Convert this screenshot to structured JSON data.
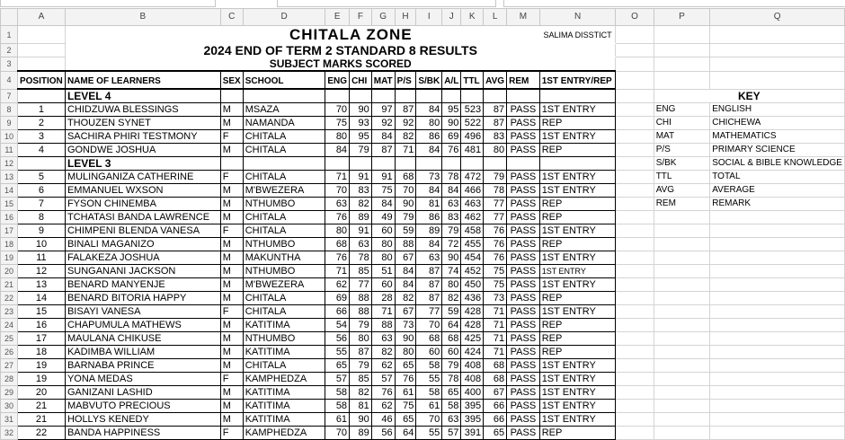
{
  "columns": [
    "A",
    "B",
    "C",
    "D",
    "E",
    "F",
    "G",
    "H",
    "I",
    "J",
    "K",
    "L",
    "M",
    "N",
    "O",
    "P",
    "Q"
  ],
  "title": "CHITALA  ZONE",
  "district": "SALIMA  DISSTICT",
  "subtitle": "2024 END OF TERM 2 STANDARD 8 RESULTS",
  "subtitle2": "SUBJECT  MARKS  SCORED",
  "headers": [
    "POSITION",
    "NAME OF LEARNERS",
    "SEX",
    "SCHOOL",
    "ENG",
    "CHI",
    "MAT",
    "P/S",
    "S/BK",
    "A/L",
    "TTL",
    "AVG",
    "REM",
    "1ST ENTRY/REP"
  ],
  "header_row_numbers": [
    "1",
    "2",
    "3",
    "4"
  ],
  "rows": [
    {
      "n": "7",
      "level": "LEVEL  4"
    },
    {
      "n": "8",
      "cells": [
        "1",
        "CHIDZUWA  BLESSINGS",
        "M",
        "MSAZA",
        "70",
        "90",
        "97",
        "87",
        "84",
        "95",
        "523",
        "87",
        "PASS",
        "1ST ENTRY"
      ]
    },
    {
      "n": "9",
      "cells": [
        "2",
        "THOUZEN  SYNET",
        "M",
        "NAMANDA",
        "75",
        "93",
        "92",
        "92",
        "80",
        "90",
        "522",
        "87",
        "PASS",
        "REP"
      ]
    },
    {
      "n": "10",
      "cells": [
        "3",
        "SACHIRA PHIRI TESTMONY",
        "F",
        "CHITALA",
        "80",
        "95",
        "84",
        "82",
        "86",
        "69",
        "496",
        "83",
        "PASS",
        "1ST ENTRY"
      ]
    },
    {
      "n": "11",
      "cells": [
        "4",
        "GONDWE  JOSHUA",
        "M",
        "CHITALA",
        "84",
        "79",
        "87",
        "71",
        "84",
        "76",
        "481",
        "80",
        "PASS",
        "REP"
      ]
    },
    {
      "n": "12",
      "level": "LEVEL  3"
    },
    {
      "n": "13",
      "cells": [
        "5",
        "MULINGANIZA  CATHERINE",
        "F",
        "CHITALA",
        "71",
        "91",
        "91",
        "68",
        "73",
        "78",
        "472",
        "79",
        "PASS",
        "1ST ENTRY"
      ]
    },
    {
      "n": "14",
      "cells": [
        "6",
        "EMMANUEL  WXSON",
        "M",
        "M'BWEZERA",
        "70",
        "83",
        "75",
        "70",
        "84",
        "84",
        "466",
        "78",
        "PASS",
        "1ST ENTRY"
      ]
    },
    {
      "n": "15",
      "cells": [
        "7",
        "FYSON  CHINEMBA",
        "M",
        "NTHUMBO",
        "63",
        "82",
        "84",
        "90",
        "81",
        "63",
        "463",
        "77",
        "PASS",
        "REP"
      ]
    },
    {
      "n": "16",
      "cells": [
        "8",
        "TCHATASI  BANDA LAWRENCE",
        "M",
        "CHITALA",
        "76",
        "89",
        "49",
        "79",
        "86",
        "83",
        "462",
        "77",
        "PASS",
        "REP"
      ]
    },
    {
      "n": "17",
      "cells": [
        "9",
        "CHIMPENI  BLENDA  VANESA",
        "F",
        "CHITALA",
        "80",
        "91",
        "60",
        "59",
        "89",
        "79",
        "458",
        "76",
        "PASS",
        "1ST ENTRY"
      ]
    },
    {
      "n": "18",
      "cells": [
        "10",
        "BINALI  MAGANIZO",
        "M",
        "NTHUMBO",
        "68",
        "63",
        "80",
        "88",
        "84",
        "72",
        "455",
        "76",
        "PASS",
        "REP"
      ]
    },
    {
      "n": "19",
      "cells": [
        "11",
        "FALAKEZA  JOSHUA",
        "M",
        "MAKUNTHA",
        "76",
        "78",
        "80",
        "67",
        "63",
        "90",
        "454",
        "76",
        "PASS",
        "1ST ENTRY"
      ]
    },
    {
      "n": "20",
      "cells": [
        "12",
        "SUNGANANI  JACKSON",
        "M",
        "NTHUMBO",
        "71",
        "85",
        "51",
        "84",
        "87",
        "74",
        "452",
        "75",
        "PASS",
        "1ST ENTRY"
      ]
    },
    {
      "n": "21",
      "cells": [
        "13",
        "BENARD  MANYENJE",
        "M",
        "M'BWEZERA",
        "62",
        "77",
        "60",
        "84",
        "87",
        "80",
        "450",
        "75",
        "PASS",
        "1ST ENTRY"
      ]
    },
    {
      "n": "22",
      "cells": [
        "14",
        "BENARD  BITORIA  HAPPY",
        "M",
        "CHITALA",
        "69",
        "88",
        "28",
        "82",
        "87",
        "82",
        "436",
        "73",
        "PASS",
        "REP"
      ]
    },
    {
      "n": "23",
      "cells": [
        "15",
        "BISAYI  VANESA",
        "F",
        "CHITALA",
        "66",
        "88",
        "71",
        "67",
        "77",
        "59",
        "428",
        "71",
        "PASS",
        "1ST ENTRY"
      ]
    },
    {
      "n": "24",
      "cells": [
        "16",
        "CHAPUMULA  MATHEWS",
        "M",
        "KATITIMA",
        "54",
        "79",
        "88",
        "73",
        "70",
        "64",
        "428",
        "71",
        "PASS",
        "REP"
      ]
    },
    {
      "n": "25",
      "cells": [
        "17",
        "MAULANA  CHIKUSE",
        "M",
        "NTHUMBO",
        "56",
        "80",
        "63",
        "90",
        "68",
        "68",
        "425",
        "71",
        "PASS",
        "REP"
      ]
    },
    {
      "n": "26",
      "cells": [
        "18",
        "KADIMBA  WILLIAM",
        "M",
        "KATITIMA",
        "55",
        "87",
        "82",
        "80",
        "60",
        "60",
        "424",
        "71",
        "PASS",
        "REP"
      ]
    },
    {
      "n": "27",
      "cells": [
        "19",
        "BARNABA  PRINCE",
        "M",
        "CHITALA",
        "65",
        "79",
        "62",
        "65",
        "58",
        "79",
        "408",
        "68",
        "PASS",
        "1ST ENTRY"
      ]
    },
    {
      "n": "28",
      "cells": [
        "19",
        "YONA  MEDAS",
        "F",
        "KAMPHEDZA",
        "57",
        "85",
        "57",
        "76",
        "55",
        "78",
        "408",
        "68",
        "PASS",
        "1ST ENTRY"
      ]
    },
    {
      "n": "29",
      "cells": [
        "20",
        "GANIZANI  LASHID",
        "M",
        "KATITIMA",
        "58",
        "82",
        "76",
        "61",
        "58",
        "65",
        "400",
        "67",
        "PASS",
        "1ST ENTRY"
      ]
    },
    {
      "n": "30",
      "cells": [
        "21",
        "MABVUTO  PRECIOUS",
        "M",
        "KATITIMA",
        "58",
        "81",
        "62",
        "75",
        "61",
        "58",
        "395",
        "66",
        "PASS",
        "1ST ENTRY"
      ]
    },
    {
      "n": "31",
      "cells": [
        "21",
        "HOLLYS  KENEDY",
        "M",
        "KATITIMA",
        "61",
        "90",
        "46",
        "65",
        "70",
        "63",
        "395",
        "66",
        "PASS",
        "1ST ENTRY"
      ]
    },
    {
      "n": "32",
      "cells": [
        "22",
        "BANDA  HAPPINESS",
        "F",
        "KAMPHEDZA",
        "70",
        "89",
        "56",
        "64",
        "55",
        "57",
        "391",
        "65",
        "PASS",
        "REP"
      ]
    }
  ],
  "key": {
    "title": "KEY",
    "items": [
      {
        "abbr": "ENG",
        "meaning": "ENGLISH"
      },
      {
        "abbr": "CHI",
        "meaning": "CHICHEWA"
      },
      {
        "abbr": "MAT",
        "meaning": "MATHEMATICS"
      },
      {
        "abbr": "P/S",
        "meaning": "PRIMARY SCIENCE"
      },
      {
        "abbr": "S/BK",
        "meaning": "SOCIAL & BIBLE KNOWLEDGE"
      },
      {
        "abbr": "TTL",
        "meaning": "TOTAL"
      },
      {
        "abbr": "AVG",
        "meaning": "AVERAGE"
      },
      {
        "abbr": "REM",
        "meaning": "REMARK"
      }
    ]
  }
}
